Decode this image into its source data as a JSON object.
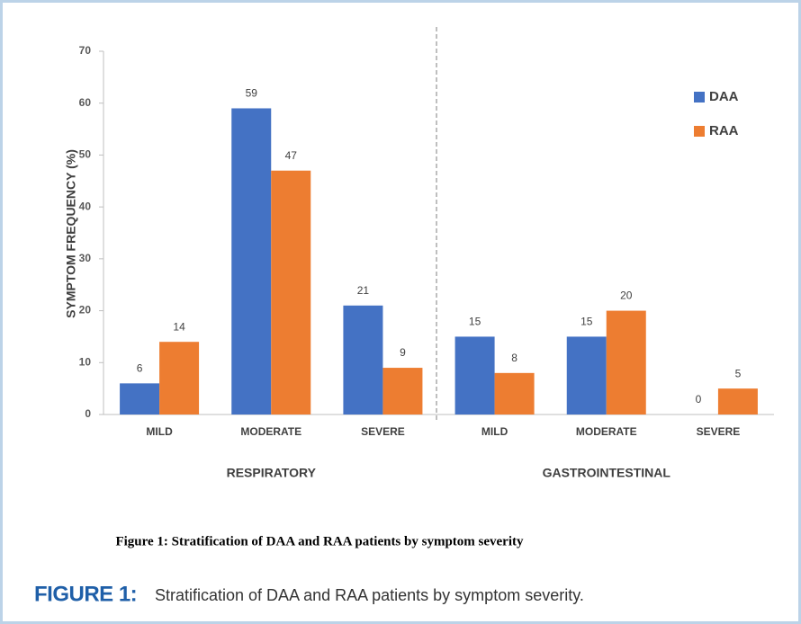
{
  "chart_data": {
    "type": "bar",
    "title": "Figure 1: Stratification of DAA and RAA patients by symptom severity",
    "ylabel": "SYMPTOM FREQUENCY (%)",
    "categories": [
      "MILD",
      "MODERATE",
      "SEVERE",
      "MILD",
      "MODERATE",
      "SEVERE"
    ],
    "groups": [
      "RESPIRATORY",
      "GASTROINTESTINAL"
    ],
    "series": [
      {
        "name": "DAA",
        "color": "#4472c4",
        "values": [
          6,
          59,
          21,
          15,
          15,
          0
        ]
      },
      {
        "name": "RAA",
        "color": "#ed7d31",
        "values": [
          14,
          47,
          9,
          8,
          20,
          5
        ]
      }
    ],
    "ylim": [
      0,
      70
    ],
    "yticks": [
      0,
      10,
      20,
      30,
      40,
      50,
      60,
      70
    ],
    "legend": "top-right"
  },
  "caption_label": "FIGURE 1:",
  "caption_text": "Stratification of DAA and RAA patients by symptom severity."
}
